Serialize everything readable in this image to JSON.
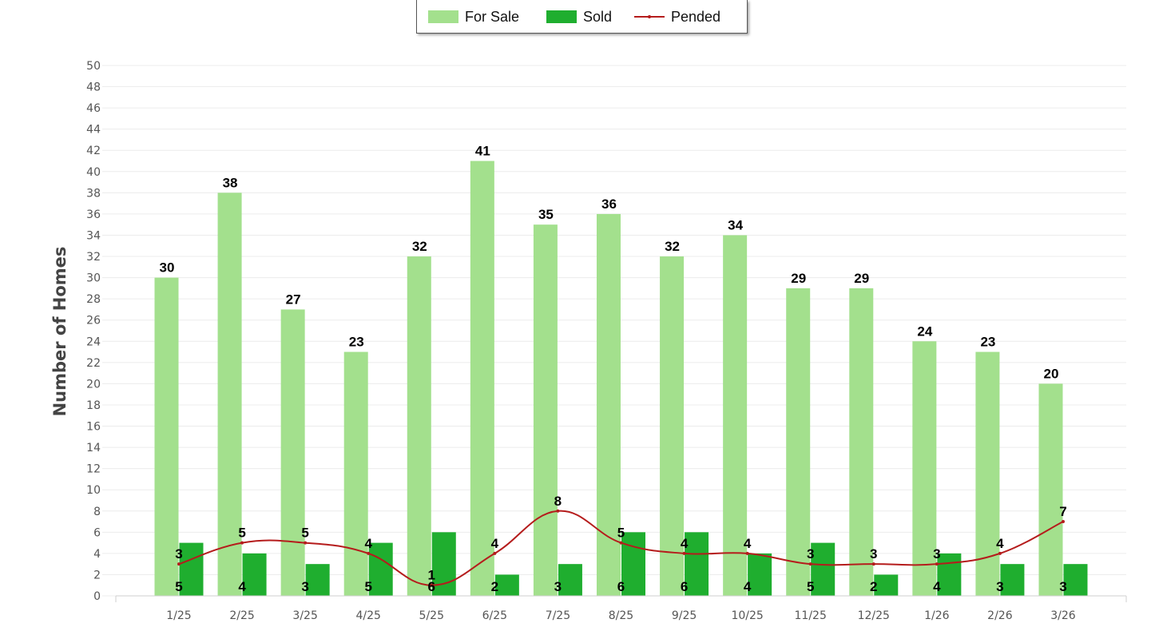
{
  "chart_data": {
    "type": "bar",
    "categories": [
      "1/25",
      "2/25",
      "3/25",
      "4/25",
      "5/25",
      "6/25",
      "7/25",
      "8/25",
      "9/25",
      "10/25",
      "11/25",
      "12/25",
      "1/26",
      "2/26",
      "3/26"
    ],
    "series": [
      {
        "name": "For Sale",
        "type": "bar",
        "color": "#a3e08d",
        "values": [
          30,
          38,
          27,
          23,
          32,
          41,
          35,
          36,
          32,
          34,
          29,
          29,
          24,
          23,
          20
        ]
      },
      {
        "name": "Sold",
        "type": "bar",
        "color": "#1fae2f",
        "values": [
          5,
          4,
          3,
          5,
          6,
          2,
          3,
          6,
          6,
          4,
          5,
          2,
          4,
          3,
          3
        ]
      },
      {
        "name": "Pended",
        "type": "line",
        "color": "#b51c1c",
        "values": [
          3,
          5,
          5,
          4,
          1,
          4,
          8,
          5,
          4,
          4,
          3,
          3,
          3,
          4,
          7
        ]
      }
    ],
    "yticks": [
      0,
      2,
      4,
      6,
      8,
      10,
      12,
      14,
      16,
      18,
      20,
      22,
      24,
      26,
      28,
      30,
      32,
      34,
      36,
      38,
      40,
      42,
      44,
      46,
      48,
      50
    ],
    "ylim": [
      0,
      50
    ],
    "xlabel": "",
    "ylabel": "Number of Homes",
    "grid": true,
    "legend_position": "top-center"
  },
  "legend": {
    "for_sale": "For Sale",
    "sold": "Sold",
    "pended": "Pended"
  }
}
